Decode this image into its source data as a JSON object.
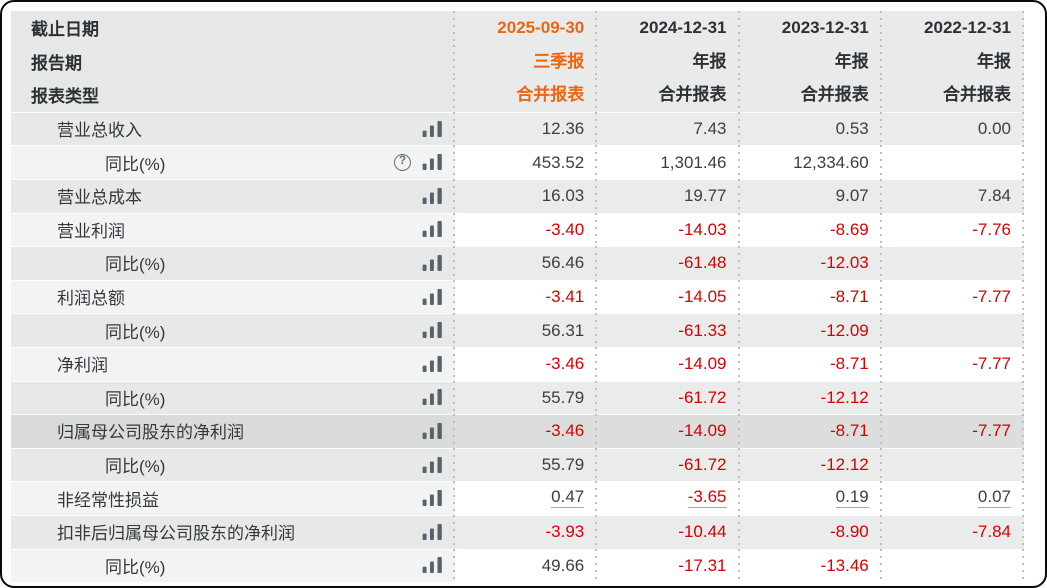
{
  "colors": {
    "accent_orange": "#ef650f",
    "negative_red": "#d90000",
    "text_dark": "#34383c",
    "row_gray": "#eaebeb",
    "row_white": "#ffffff",
    "highlight_row": "#dcdede",
    "divider_dots": "#bdc0c0",
    "icon_gray": "#59616a",
    "window_border": "#0a0a0a"
  },
  "icons": {
    "help_glyph": "?",
    "bar_chart": "bar-chart-icon"
  },
  "table": {
    "header_rows": [
      {
        "label": "截止日期",
        "values": [
          "2025-09-30",
          "2024-12-31",
          "2023-12-31",
          "2022-12-31"
        ]
      },
      {
        "label": "报告期",
        "values": [
          "三季报",
          "年报",
          "年报",
          "年报"
        ]
      },
      {
        "label": "报表类型",
        "values": [
          "合并报表",
          "合并报表",
          "合并报表",
          "合并报表"
        ]
      }
    ],
    "rows": [
      {
        "label": "营业总收入",
        "indent": 1,
        "icons": [
          "bar-chart"
        ],
        "zebra": "gray",
        "values": [
          "12.36",
          "7.43",
          "0.53",
          "0.00"
        ]
      },
      {
        "label": "同比(%)",
        "indent": 2,
        "icons": [
          "help",
          "bar-chart"
        ],
        "zebra": "white",
        "values": [
          "453.52",
          "1,301.46",
          "12,334.60",
          ""
        ]
      },
      {
        "label": "营业总成本",
        "indent": 1,
        "icons": [
          "bar-chart"
        ],
        "zebra": "gray",
        "values": [
          "16.03",
          "19.77",
          "9.07",
          "7.84"
        ]
      },
      {
        "label": "营业利润",
        "indent": 1,
        "icons": [
          "bar-chart"
        ],
        "zebra": "white",
        "values": [
          "-3.40",
          "-14.03",
          "-8.69",
          "-7.76"
        ]
      },
      {
        "label": "同比(%)",
        "indent": 2,
        "icons": [
          "bar-chart"
        ],
        "zebra": "gray",
        "values": [
          "56.46",
          "-61.48",
          "-12.03",
          ""
        ]
      },
      {
        "label": "利润总额",
        "indent": 1,
        "icons": [
          "bar-chart"
        ],
        "zebra": "white",
        "values": [
          "-3.41",
          "-14.05",
          "-8.71",
          "-7.77"
        ]
      },
      {
        "label": "同比(%)",
        "indent": 2,
        "icons": [
          "bar-chart"
        ],
        "zebra": "gray",
        "values": [
          "56.31",
          "-61.33",
          "-12.09",
          ""
        ]
      },
      {
        "label": "净利润",
        "indent": 1,
        "icons": [
          "bar-chart"
        ],
        "zebra": "white",
        "values": [
          "-3.46",
          "-14.09",
          "-8.71",
          "-7.77"
        ]
      },
      {
        "label": "同比(%)",
        "indent": 2,
        "icons": [
          "bar-chart"
        ],
        "zebra": "gray",
        "values": [
          "55.79",
          "-61.72",
          "-12.12",
          ""
        ]
      },
      {
        "label": "归属母公司股东的净利润",
        "indent": 1,
        "icons": [
          "bar-chart"
        ],
        "zebra": "highlight",
        "values": [
          "-3.46",
          "-14.09",
          "-8.71",
          "-7.77"
        ]
      },
      {
        "label": "同比(%)",
        "indent": 2,
        "icons": [
          "bar-chart"
        ],
        "zebra": "gray",
        "values": [
          "55.79",
          "-61.72",
          "-12.12",
          ""
        ]
      },
      {
        "label": "非经常性损益",
        "indent": 1,
        "icons": [
          "bar-chart"
        ],
        "zebra": "white",
        "underline": true,
        "values": [
          "0.47",
          "-3.65",
          "0.19",
          "0.07"
        ]
      },
      {
        "label": "扣非后归属母公司股东的净利润",
        "indent": 1,
        "icons": [
          "bar-chart"
        ],
        "zebra": "gray",
        "values": [
          "-3.93",
          "-10.44",
          "-8.90",
          "-7.84"
        ]
      },
      {
        "label": "同比(%)",
        "indent": 2,
        "icons": [
          "bar-chart"
        ],
        "zebra": "white",
        "values": [
          "49.66",
          "-17.31",
          "-13.46",
          ""
        ]
      }
    ]
  }
}
